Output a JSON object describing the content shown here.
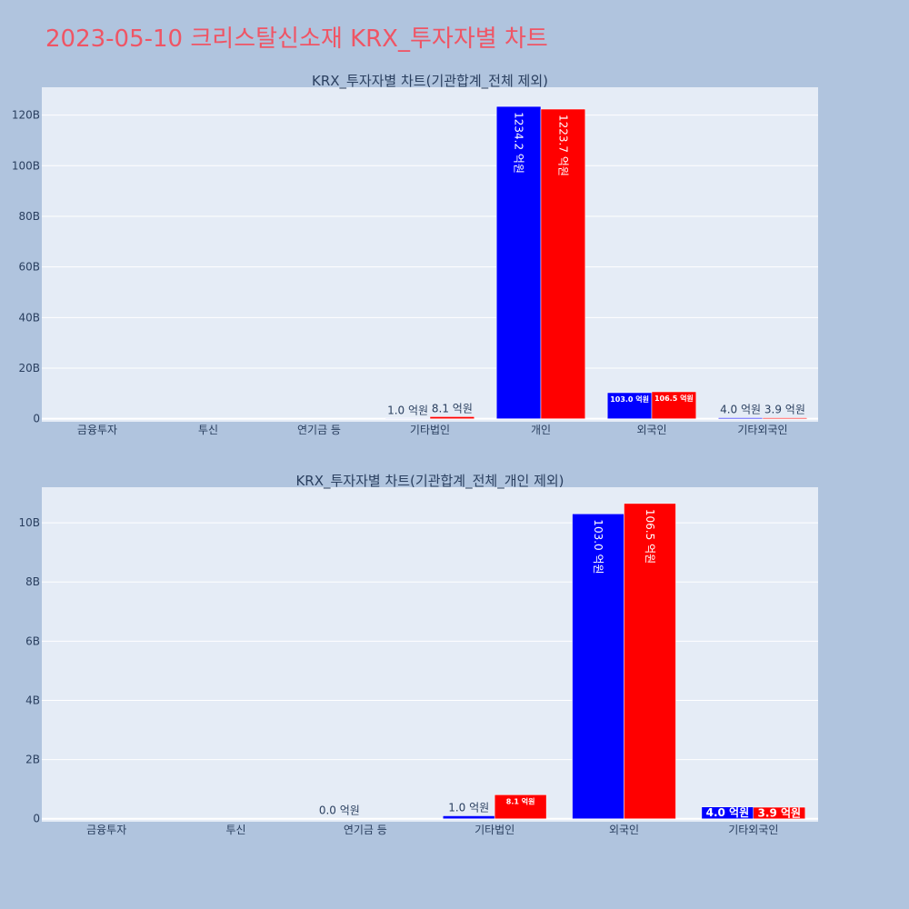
{
  "page_title": "2023-05-10 크리스탈신소재 KRX_투자자별 차트",
  "colors": {
    "background": "#b0c4de",
    "plot_bg": "#e5ecf6",
    "title": "#ef5565",
    "text": "#2a3f5f",
    "series_a": "#0000ff",
    "series_b": "#ff0000"
  },
  "chart_data": [
    {
      "type": "bar",
      "title": "KRX_투자자별 차트(기관합계_전체 제외)",
      "categories": [
        "금융투자",
        "투신",
        "연기금 등",
        "기타법인",
        "개인",
        "외국인",
        "기타외국인"
      ],
      "series": [
        {
          "color": "#0000ff",
          "values": [
            0,
            0,
            0,
            0.1,
            123.42,
            10.3,
            0.4
          ],
          "labels": [
            "",
            "",
            "",
            "1.0 억원",
            "1234.2 억원",
            "103.0 억원",
            "4.0 억원"
          ]
        },
        {
          "color": "#ff0000",
          "values": [
            0,
            0,
            0,
            0.81,
            122.37,
            10.65,
            0.39
          ],
          "labels": [
            "",
            "",
            "",
            "8.1 억원",
            "1223.7 억원",
            "106.5 억원",
            "3.9 억원"
          ]
        }
      ],
      "yticks": [
        0,
        20,
        40,
        60,
        80,
        100,
        120
      ],
      "ytick_labels": [
        "0",
        "20B",
        "40B",
        "60B",
        "80B",
        "100B",
        "120B"
      ],
      "ylim": [
        -1.2,
        131
      ],
      "grid": true
    },
    {
      "type": "bar",
      "title": "KRX_투자자별 차트(기관합계_전체_개인 제외)",
      "categories": [
        "금융투자",
        "투신",
        "연기금 등",
        "기타법인",
        "외국인",
        "기타외국인"
      ],
      "series": [
        {
          "color": "#0000ff",
          "values": [
            0,
            0,
            0,
            0.1,
            10.3,
            0.4
          ],
          "labels": [
            "",
            "",
            "0.0 억원",
            "1.0 억원",
            "103.0 억원",
            "4.0 억원"
          ]
        },
        {
          "color": "#ff0000",
          "values": [
            0,
            0,
            0,
            0.81,
            10.65,
            0.39
          ],
          "labels": [
            "",
            "",
            "",
            "8.1 억원",
            "106.5 억원",
            "3.9 억원"
          ]
        }
      ],
      "yticks": [
        0,
        2,
        4,
        6,
        8,
        10
      ],
      "ytick_labels": [
        "0",
        "2B",
        "4B",
        "6B",
        "8B",
        "10B"
      ],
      "ylim": [
        -0.1,
        11.2
      ],
      "grid": true
    }
  ]
}
